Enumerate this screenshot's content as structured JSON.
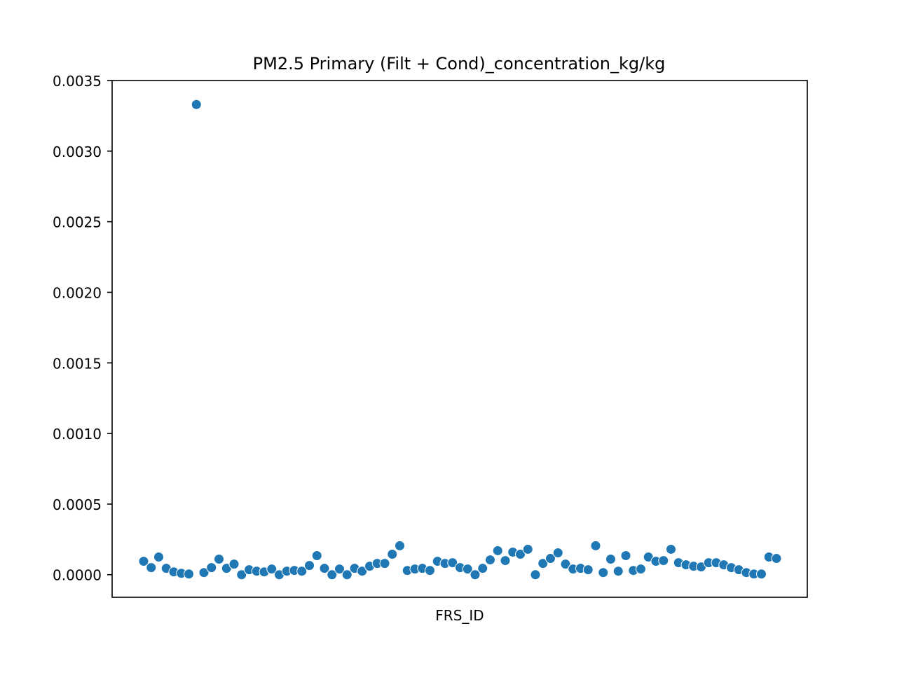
{
  "chart_data": {
    "type": "scatter",
    "title": "PM2.5 Primary (Filt + Cond)_concentration_kg/kg",
    "xlabel": "FRS_ID",
    "ylabel": "",
    "ylim": [
      -0.00016,
      0.0035
    ],
    "yticks": [
      0.0,
      0.0005,
      0.001,
      0.0015,
      0.002,
      0.0025,
      0.003,
      0.0035
    ],
    "ytick_labels": [
      "0.0000",
      "0.0005",
      "0.0010",
      "0.0015",
      "0.0020",
      "0.0025",
      "0.0030",
      "0.0035"
    ],
    "xticks_visible": false,
    "grid": false,
    "legend": "none",
    "point_color": "#1f77b4",
    "series": [
      {
        "values": [
          9.5e-05,
          5e-05,
          0.000125,
          4.5e-05,
          2e-05,
          1e-05,
          5e-06,
          0.00333,
          1.5e-05,
          5e-05,
          0.00011,
          4.5e-05,
          7.5e-05,
          0.0,
          3.5e-05,
          2.5e-05,
          2e-05,
          4e-05,
          0.0,
          2.5e-05,
          3e-05,
          2.5e-05,
          6.5e-05,
          0.000135,
          4.5e-05,
          0.0,
          4e-05,
          0.0,
          4.5e-05,
          2.5e-05,
          6e-05,
          8e-05,
          8e-05,
          0.000145,
          0.000205,
          3e-05,
          4e-05,
          4.5e-05,
          3e-05,
          9.5e-05,
          8e-05,
          8.5e-05,
          5e-05,
          4e-05,
          0.0,
          4.5e-05,
          0.000105,
          0.00017,
          0.0001,
          0.00016,
          0.000145,
          0.00018,
          0.0,
          8e-05,
          0.000115,
          0.000155,
          7.5e-05,
          4e-05,
          4.5e-05,
          3.5e-05,
          0.000205,
          1.5e-05,
          0.00011,
          2.5e-05,
          0.000135,
          3e-05,
          4e-05,
          0.000125,
          9.5e-05,
          0.0001,
          0.00018,
          8.5e-05,
          7e-05,
          6e-05,
          5.5e-05,
          8.5e-05,
          8.5e-05,
          7e-05,
          5e-05,
          3.5e-05,
          1.5e-05,
          5e-06,
          5e-06,
          0.000125,
          0.000115
        ]
      }
    ]
  }
}
